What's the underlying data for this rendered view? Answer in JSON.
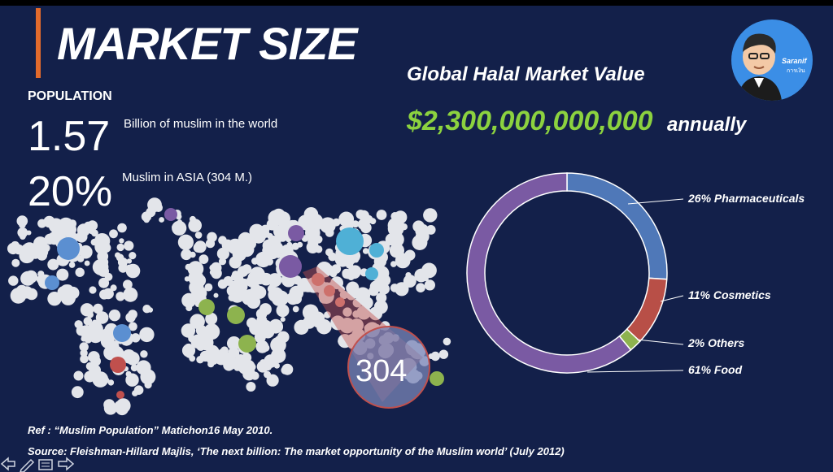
{
  "slide": {
    "title": "MARKET SIZE",
    "population_label": "POPULATION",
    "stat1_value": "1.57",
    "stat1_desc": "Billion of muslim in the world",
    "stat2_value": "20%",
    "stat2_desc": "Muslim in ASIA (304 M.)",
    "map_callout": "304",
    "market_title": "Global Halal Market Value",
    "market_value": "$2,300,000,000,000",
    "market_suffix": "annually",
    "avatar_badge": "Saranif",
    "avatar_badge_sub": "การเงิน",
    "ref_text": "Ref : “Muslim Population” Matichon16 May 2010.",
    "source_text": "Source: Fleishman-Hillard Majlis, ‘The next billion: The market opportunity of the Muslim world’ (July 2012)"
  },
  "donut": {
    "segments": [
      {
        "label": "26% Pharmaceuticals",
        "value": 26,
        "color": "#4f78b8"
      },
      {
        "label": "11% Cosmetics",
        "value": 11,
        "color": "#b84f47"
      },
      {
        "label": "2% Others",
        "value": 2,
        "color": "#8db34e"
      },
      {
        "label": "61% Food",
        "value": 61,
        "color": "#7a5aa3"
      }
    ]
  },
  "colors": {
    "background": "#13204a",
    "accent": "#e26a2c",
    "market_value": "#8cd23f"
  },
  "icons": [
    "back-arrow-icon",
    "pen-icon",
    "slides-icon",
    "forward-arrow-icon"
  ]
}
